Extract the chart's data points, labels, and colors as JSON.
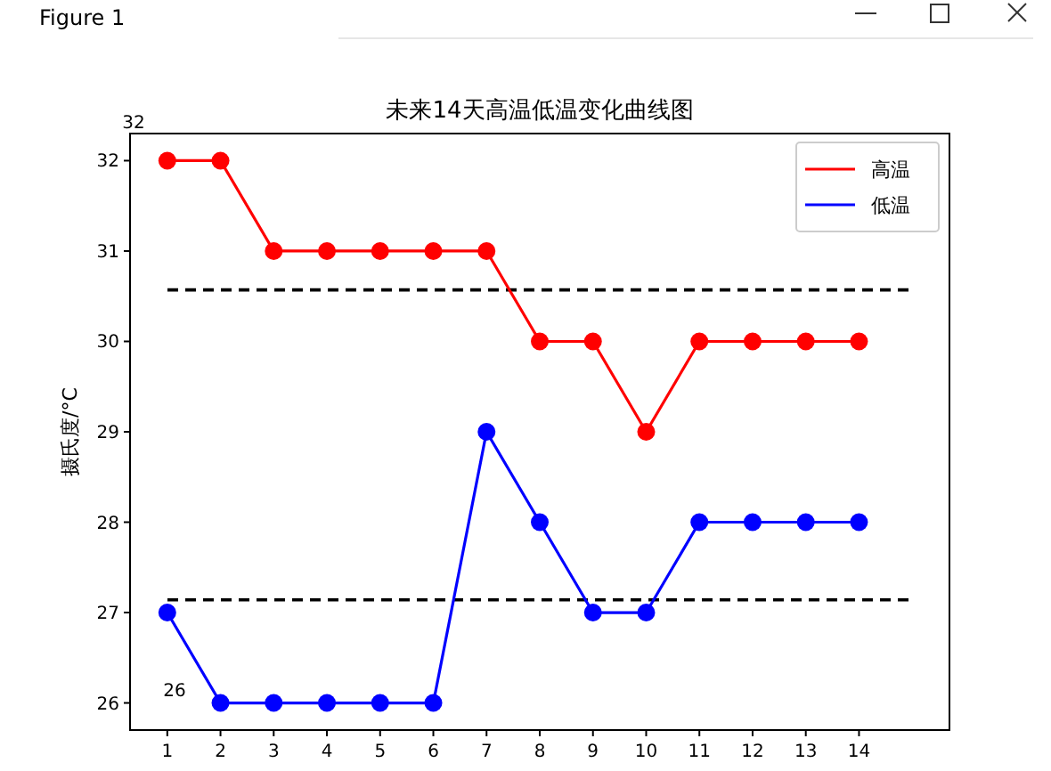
{
  "chart_data": {
    "type": "line",
    "title": "未来14天高温低温变化曲线图",
    "ylabel": "摄氏度/°C",
    "x": [
      1,
      2,
      3,
      4,
      5,
      6,
      7,
      8,
      9,
      10,
      11,
      12,
      13,
      14
    ],
    "series": [
      {
        "name": "高温",
        "color": "#ff0000",
        "values": [
          32,
          32,
          31,
          31,
          31,
          31,
          31,
          30,
          30,
          29,
          30,
          30,
          30,
          30
        ]
      },
      {
        "name": "低温",
        "color": "#0000ff",
        "values": [
          27,
          26,
          26,
          26,
          26,
          26,
          29,
          28,
          27,
          27,
          28,
          28,
          28,
          28
        ]
      }
    ],
    "ref_lines": [
      {
        "axis": "y",
        "value": 30.57,
        "color": "#000000",
        "line_style": "dashed"
      },
      {
        "axis": "y",
        "value": 27.14,
        "color": "#000000",
        "line_style": "dashed"
      }
    ],
    "xlim": [
      0.3,
      15.7
    ],
    "xticks": [
      1,
      2,
      3,
      4,
      5,
      6,
      7,
      8,
      9,
      10,
      11,
      12,
      13,
      14
    ],
    "ylim": [
      25.7,
      32.3
    ],
    "yticks": [
      26,
      27,
      28,
      29,
      30,
      31,
      32
    ],
    "marker": "circle",
    "line_style": "solid",
    "legend": "top right",
    "annotations": [
      "Figure 1",
      "32",
      "26"
    ]
  }
}
